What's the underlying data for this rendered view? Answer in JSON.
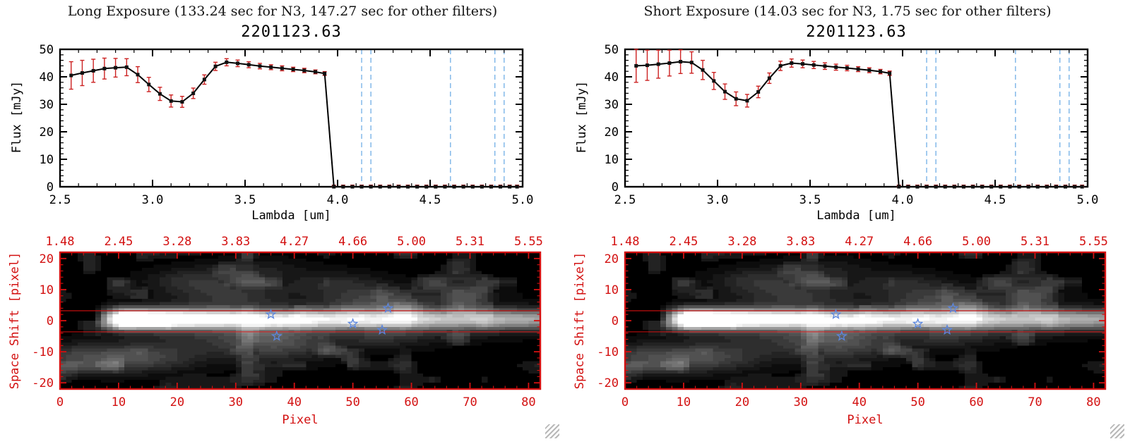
{
  "chart_data": [
    {
      "panel": "long-exposure",
      "header": "Long Exposure (133.24 sec for N3, 147.27 sec for other filters)",
      "spectrum": {
        "type": "line",
        "title": "2201123.63",
        "xlabel": "Lambda [um]",
        "ylabel": "Flux [mJy]",
        "xlim": [
          2.5,
          5.0
        ],
        "ylim": [
          0,
          50
        ],
        "xticks": [
          2.5,
          3.0,
          3.5,
          4.0,
          4.5,
          5.0
        ],
        "xtick_labels": [
          "2.5",
          "3.0",
          "3.5",
          "4.0",
          "4.5",
          "5.0"
        ],
        "yticks": [
          0,
          10,
          20,
          30,
          40,
          50
        ],
        "ytick_labels": [
          "0",
          "10",
          "20",
          "30",
          "40",
          "50"
        ],
        "x": [
          2.56,
          2.62,
          2.68,
          2.74,
          2.8,
          2.86,
          2.92,
          2.98,
          3.04,
          3.1,
          3.16,
          3.22,
          3.28,
          3.34,
          3.4,
          3.46,
          3.52,
          3.58,
          3.64,
          3.7,
          3.76,
          3.82,
          3.88,
          3.93,
          3.98,
          4.03,
          4.08,
          4.13,
          4.18,
          4.23,
          4.28,
          4.33,
          4.38,
          4.43,
          4.48,
          4.53,
          4.58,
          4.63,
          4.68,
          4.73,
          4.78,
          4.83,
          4.88,
          4.93,
          4.97
        ],
        "flux": [
          40.5,
          41.4,
          42.2,
          43.0,
          43.3,
          43.5,
          40.8,
          37.2,
          33.8,
          31.2,
          30.9,
          34.0,
          39.0,
          43.8,
          45.3,
          44.9,
          44.4,
          43.9,
          43.5,
          43.1,
          42.7,
          42.3,
          41.8,
          41.2,
          0,
          0,
          0,
          0,
          0,
          0,
          0,
          0,
          0,
          0,
          0,
          0,
          0,
          0,
          0,
          0,
          0,
          0,
          0,
          0,
          0
        ],
        "flux_err": [
          5.0,
          4.6,
          4.2,
          3.8,
          3.4,
          3.1,
          2.9,
          2.6,
          2.4,
          2.2,
          2.0,
          1.9,
          1.7,
          1.5,
          1.3,
          1.2,
          1.1,
          1.0,
          0.9,
          0.9,
          0.8,
          0.8,
          0.7,
          0.7,
          0.6,
          0.6,
          0.6,
          0.6,
          0.6,
          0.6,
          0.6,
          0.6,
          0.6,
          0.6,
          0.6,
          0.6,
          0.6,
          0.6,
          0.6,
          0.6,
          0.6,
          0.6,
          0.6,
          0.6,
          0.6
        ],
        "dashed_lines_x": [
          4.13,
          4.18,
          4.61,
          4.85,
          4.9
        ],
        "colors": {
          "line": "#000000",
          "marker": "#111111",
          "error": "#cc2222",
          "dashed": "#7ab4e8",
          "axis": "#000000"
        }
      },
      "image": {
        "type": "heatmap",
        "xlabel": "Pixel",
        "ylabel": "Space Shift [pixel]",
        "xlim": [
          0,
          82
        ],
        "ylim": [
          -22,
          22
        ],
        "xticks": [
          0,
          10,
          20,
          30,
          40,
          50,
          60,
          70,
          80
        ],
        "xtick_labels": [
          "0",
          "10",
          "20",
          "30",
          "40",
          "50",
          "60",
          "70",
          "80"
        ],
        "yticks": [
          -20,
          -10,
          0,
          10,
          20
        ],
        "ytick_labels": [
          "-20",
          "-10",
          "0",
          "10",
          "20"
        ],
        "top_tick_positions": [
          0,
          10,
          20,
          30,
          40,
          50,
          60,
          70,
          80
        ],
        "top_tick_labels": [
          "1.48",
          "2.45",
          "3.28",
          "3.83",
          "4.27",
          "4.66",
          "5.00",
          "5.31",
          "5.55"
        ],
        "axis_color": "#d31111",
        "extraction_lines_y": [
          3.2,
          -3.6
        ],
        "stars": [
          [
            36,
            2
          ],
          [
            37,
            -5
          ],
          [
            50,
            -1
          ],
          [
            55,
            -3
          ],
          [
            56,
            4
          ]
        ],
        "star_color": "#5b87e0",
        "render": {
          "seed": 9,
          "streak": {
            "x_start": 6,
            "x_peak": 11,
            "peak": 1.7,
            "base": 0.5,
            "decay": 26,
            "y0": 0.5,
            "sigma": 2.1
          },
          "blobs": [
            [
              29,
              8,
              7,
              3.5,
              0.16
            ],
            [
              22,
              13,
              5,
              2.5,
              0.11
            ],
            [
              27,
              -6,
              9,
              4,
              0.13
            ],
            [
              38,
              -8,
              6,
              3.5,
              0.16
            ],
            [
              36,
              -4,
              5,
              2.5,
              0.12
            ],
            [
              53,
              6,
              6,
              3.5,
              0.2
            ],
            [
              58,
              2.5,
              4,
              2.5,
              0.15
            ],
            [
              55,
              -4,
              6,
              3,
              0.16
            ],
            [
              5,
              -12,
              8,
              3,
              0.22
            ],
            [
              15,
              -12,
              6,
              3,
              0.12
            ],
            [
              47,
              12,
              5,
              2.5,
              0.1
            ],
            [
              68,
              8,
              5,
              3,
              0.1
            ],
            [
              70,
              -1,
              8,
              3,
              0.1
            ],
            [
              33,
              16,
              6,
              2.5,
              0.09
            ]
          ],
          "noise": {
            "scale": 4.5,
            "floor": 0.58,
            "gain": 0.55
          }
        }
      }
    },
    {
      "panel": "short-exposure",
      "header": "Short Exposure (14.03 sec for N3, 1.75 sec for other filters)",
      "spectrum": {
        "type": "line",
        "title": "2201123.63",
        "xlabel": "Lambda [um]",
        "ylabel": "Flux [mJy]",
        "xlim": [
          2.5,
          5.0
        ],
        "ylim": [
          0,
          50
        ],
        "xticks": [
          2.5,
          3.0,
          3.5,
          4.0,
          4.5,
          5.0
        ],
        "xtick_labels": [
          "2.5",
          "3.0",
          "3.5",
          "4.0",
          "4.5",
          "5.0"
        ],
        "yticks": [
          0,
          10,
          20,
          30,
          40,
          50
        ],
        "ytick_labels": [
          "0",
          "10",
          "20",
          "30",
          "40",
          "50"
        ],
        "x": [
          2.56,
          2.62,
          2.68,
          2.74,
          2.8,
          2.86,
          2.92,
          2.98,
          3.04,
          3.1,
          3.16,
          3.22,
          3.28,
          3.34,
          3.4,
          3.46,
          3.52,
          3.58,
          3.64,
          3.7,
          3.76,
          3.82,
          3.88,
          3.93,
          3.98,
          4.03,
          4.08,
          4.13,
          4.18,
          4.23,
          4.28,
          4.33,
          4.38,
          4.43,
          4.48,
          4.53,
          4.58,
          4.63,
          4.68,
          4.73,
          4.78,
          4.83,
          4.88,
          4.93,
          4.97
        ],
        "flux": [
          44.0,
          44.2,
          44.6,
          45.0,
          45.5,
          45.2,
          42.5,
          38.5,
          34.6,
          32.0,
          31.3,
          34.5,
          39.5,
          44.0,
          45.0,
          44.7,
          44.3,
          43.9,
          43.5,
          43.2,
          42.8,
          42.4,
          41.9,
          41.3,
          0,
          0,
          0,
          0,
          0,
          0,
          0,
          0,
          0,
          0,
          0,
          0,
          0,
          0,
          0,
          0,
          0,
          0,
          0,
          0,
          0
        ],
        "flux_err": [
          6.0,
          5.5,
          5.1,
          4.7,
          4.3,
          3.9,
          3.5,
          3.1,
          2.8,
          2.5,
          2.3,
          2.1,
          1.9,
          1.7,
          1.5,
          1.4,
          1.3,
          1.2,
          1.1,
          1.0,
          0.9,
          0.9,
          0.8,
          0.8,
          0.6,
          0.6,
          0.6,
          0.6,
          0.6,
          0.6,
          0.6,
          0.6,
          0.6,
          0.6,
          0.6,
          0.6,
          0.6,
          0.6,
          0.6,
          0.6,
          0.6,
          0.6,
          0.6,
          0.6,
          0.6
        ],
        "dashed_lines_x": [
          4.13,
          4.18,
          4.61,
          4.85,
          4.9
        ],
        "colors": {
          "line": "#000000",
          "marker": "#111111",
          "error": "#cc2222",
          "dashed": "#7ab4e8",
          "axis": "#000000"
        }
      },
      "image": {
        "type": "heatmap",
        "xlabel": "Pixel",
        "ylabel": "Space Shift [pixel]",
        "xlim": [
          0,
          82
        ],
        "ylim": [
          -22,
          22
        ],
        "xticks": [
          0,
          10,
          20,
          30,
          40,
          50,
          60,
          70,
          80
        ],
        "xtick_labels": [
          "0",
          "10",
          "20",
          "30",
          "40",
          "50",
          "60",
          "70",
          "80"
        ],
        "yticks": [
          -20,
          -10,
          0,
          10,
          20
        ],
        "ytick_labels": [
          "-20",
          "-10",
          "0",
          "10",
          "20"
        ],
        "top_tick_positions": [
          0,
          10,
          20,
          30,
          40,
          50,
          60,
          70,
          80
        ],
        "top_tick_labels": [
          "1.48",
          "2.45",
          "3.28",
          "3.83",
          "4.27",
          "4.66",
          "5.00",
          "5.31",
          "5.55"
        ],
        "axis_color": "#d31111",
        "extraction_lines_y": [
          3.2,
          -3.6
        ],
        "stars": [
          [
            36,
            2
          ],
          [
            37,
            -5
          ],
          [
            50,
            -1
          ],
          [
            55,
            -3
          ],
          [
            56,
            4
          ]
        ],
        "star_color": "#5b87e0",
        "render": {
          "seed": 9,
          "streak": {
            "x_start": 6,
            "x_peak": 11,
            "peak": 1.7,
            "base": 0.5,
            "decay": 26,
            "y0": 0.5,
            "sigma": 2.1
          },
          "blobs": [
            [
              29,
              8,
              7,
              3.5,
              0.16
            ],
            [
              22,
              13,
              5,
              2.5,
              0.11
            ],
            [
              27,
              -6,
              9,
              4,
              0.13
            ],
            [
              38,
              -8,
              6,
              3.5,
              0.16
            ],
            [
              36,
              -4,
              5,
              2.5,
              0.12
            ],
            [
              53,
              6,
              6,
              3.5,
              0.2
            ],
            [
              58,
              2.5,
              4,
              2.5,
              0.15
            ],
            [
              55,
              -4,
              6,
              3,
              0.16
            ],
            [
              5,
              -12,
              8,
              3,
              0.22
            ],
            [
              15,
              -12,
              6,
              3,
              0.12
            ],
            [
              47,
              12,
              5,
              2.5,
              0.1
            ],
            [
              68,
              8,
              5,
              3,
              0.1
            ],
            [
              70,
              -1,
              8,
              3,
              0.1
            ],
            [
              33,
              16,
              6,
              2.5,
              0.09
            ]
          ],
          "noise": {
            "scale": 4.5,
            "floor": 0.58,
            "gain": 0.55
          }
        }
      }
    }
  ]
}
